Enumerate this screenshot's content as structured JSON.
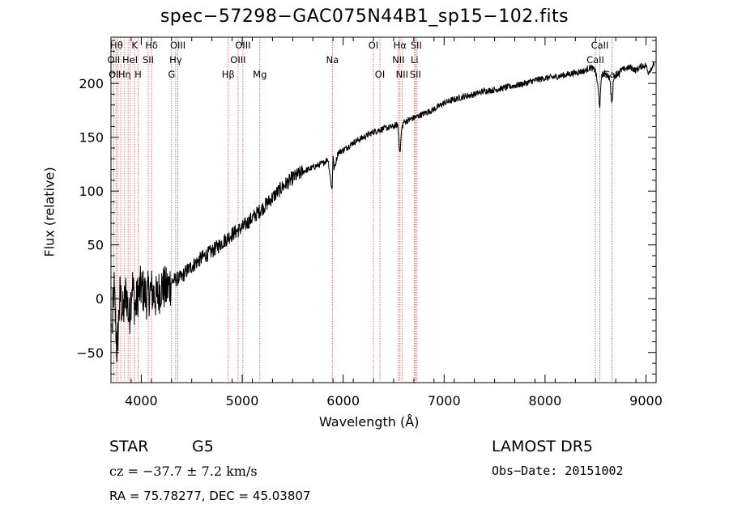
{
  "chart_data": {
    "type": "line",
    "title": "spec−57298−GAC075N44B1_sp15−102.fits",
    "xlabel": "Wavelength (Å)",
    "ylabel": "Flux (relative)",
    "xlim": [
      3700,
      9100
    ],
    "ylim": [
      -78,
      243
    ],
    "xticks": [
      4000,
      5000,
      6000,
      7000,
      8000,
      9000
    ],
    "yticks": [
      -50,
      0,
      50,
      100,
      150,
      200
    ],
    "ytick_labels": [
      "−50",
      "0",
      "50",
      "100",
      "150",
      "200"
    ],
    "grid": false,
    "series": [
      {
        "x": [
          3710,
          3730,
          3760,
          3790,
          3820,
          3850,
          3880,
          3910,
          3940,
          3970,
          4000,
          4050,
          4100,
          4150,
          4200,
          4250,
          4300,
          4350,
          4400,
          4450,
          4500,
          4600,
          4700,
          4800,
          4900,
          5000,
          5100,
          5200,
          5300,
          5400,
          5500,
          5600,
          5700,
          5800,
          5850,
          5890,
          5900,
          5910,
          5950,
          6000,
          6100,
          6200,
          6300,
          6400,
          6500,
          6540,
          6563,
          6580,
          6600,
          6700,
          6800,
          6900,
          7000,
          7100,
          7200,
          7300,
          7400,
          7500,
          7600,
          7700,
          7800,
          7900,
          8000,
          8100,
          8200,
          8300,
          8400,
          8450,
          8498,
          8520,
          8542,
          8560,
          8600,
          8640,
          8662,
          8680,
          8750,
          8800,
          8850,
          8900,
          8950,
          9000,
          9020,
          9050,
          9080
        ],
        "y": [
          -30,
          10,
          -50,
          5,
          -15,
          8,
          -20,
          15,
          -10,
          5,
          10,
          2,
          8,
          0,
          12,
          8,
          16,
          18,
          20,
          26,
          30,
          38,
          44,
          52,
          60,
          66,
          75,
          84,
          94,
          104,
          112,
          118,
          122,
          126,
          130,
          100,
          134,
          120,
          136,
          138,
          145,
          150,
          155,
          158,
          160,
          162,
          135,
          158,
          164,
          168,
          172,
          176,
          182,
          185,
          188,
          190,
          193,
          194,
          196,
          198,
          200,
          203,
          205,
          206,
          208,
          210,
          212,
          215,
          212,
          200,
          178,
          208,
          210,
          205,
          180,
          206,
          212,
          214,
          215,
          212,
          216,
          217,
          210,
          214,
          218
        ]
      }
    ],
    "line_colors": "#000000",
    "marker_lines": {
      "color": "#c0504d",
      "x": [
        3727,
        3750,
        3770,
        3798,
        3835,
        3869,
        3889,
        3933,
        3968,
        4069,
        4102,
        4300,
        4341,
        4363,
        4861,
        4959,
        5007,
        5175,
        5893,
        6300,
        6364,
        6548,
        6563,
        6583,
        6707,
        6716,
        6731,
        8498,
        8542,
        8662
      ]
    },
    "line_labels": {
      "row1": [
        {
          "t": "Hθ",
          "x": 3755
        },
        {
          "t": "K",
          "x": 3934
        },
        {
          "t": "Hδ",
          "x": 4102
        },
        {
          "t": "OIII",
          "x": 4363
        },
        {
          "t": "OIII",
          "x": 5007
        },
        {
          "t": "OI",
          "x": 6300
        },
        {
          "t": "Hα",
          "x": 6563
        },
        {
          "t": "SII",
          "x": 6723
        },
        {
          "t": "CaII",
          "x": 8542
        }
      ],
      "row2": [
        {
          "t": "OII",
          "x": 3727
        },
        {
          "t": "HeI",
          "x": 3889
        },
        {
          "t": "SII",
          "x": 4069
        },
        {
          "t": "Hγ",
          "x": 4341
        },
        {
          "t": "OIII",
          "x": 4959
        },
        {
          "t": "Na",
          "x": 5893
        },
        {
          "t": "NII",
          "x": 6548
        },
        {
          "t": "Li",
          "x": 6707
        },
        {
          "t": "CaII",
          "x": 8498
        }
      ],
      "row3": [
        {
          "t": "OI",
          "x": 3727
        },
        {
          "t": "Hη",
          "x": 3835
        },
        {
          "t": "H",
          "x": 3968
        },
        {
          "t": "G",
          "x": 4300
        },
        {
          "t": "Hβ",
          "x": 4861
        },
        {
          "t": "Mg",
          "x": 5175
        },
        {
          "t": "OI",
          "x": 6364
        },
        {
          "t": "NII",
          "x": 6583
        },
        {
          "t": "SII",
          "x": 6716
        },
        {
          "t": "CaII",
          "x": 8662
        }
      ]
    }
  },
  "info": {
    "class_left": "STAR",
    "subclass": "G5",
    "survey": "LAMOST DR5",
    "cz": "cz = −37.7 ± 7.2 km/s",
    "obs_date": "Obs−Date: 20151002",
    "radec": "RA =  75.78277, DEC =  45.03807"
  }
}
